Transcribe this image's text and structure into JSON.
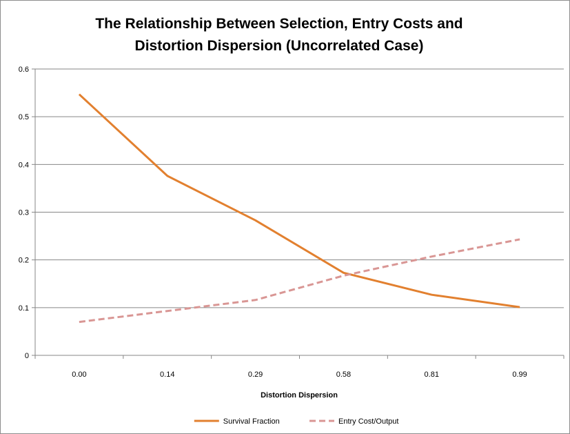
{
  "chart_data": {
    "type": "line",
    "title_lines": [
      "The Relationship Between Selection, Entry Costs and",
      "Distortion Dispersion (Uncorrelated Case)"
    ],
    "xlabel": "Distortion Dispersion",
    "ylabel": "",
    "categories": [
      "0.00",
      "0.14",
      "0.29",
      "0.58",
      "0.81",
      "0.99"
    ],
    "ylim": [
      0,
      0.6
    ],
    "yticks": [
      "0",
      "0.1",
      "0.2",
      "0.3",
      "0.4",
      "0.5",
      "0.6"
    ],
    "grid": true,
    "legend_position": "bottom",
    "series": [
      {
        "name": "Survival Fraction",
        "values": [
          0.547,
          0.376,
          0.283,
          0.173,
          0.127,
          0.101
        ],
        "color": "#e2802f",
        "dash": "solid"
      },
      {
        "name": "Entry Cost/Output",
        "values": [
          0.07,
          0.093,
          0.116,
          0.167,
          0.207,
          0.243
        ],
        "color": "#d99694",
        "dash": "dashed"
      }
    ]
  }
}
